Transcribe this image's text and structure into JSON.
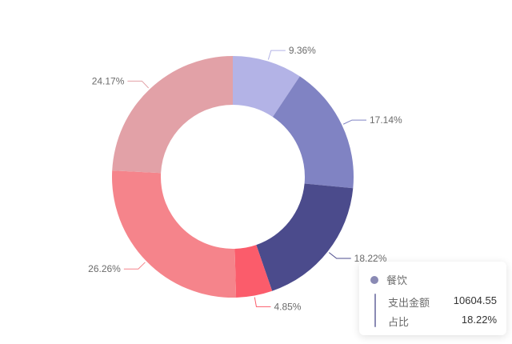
{
  "chart_data": {
    "type": "pie",
    "variant": "donut",
    "slices": [
      {
        "value": 9.36,
        "label": "9.36%",
        "color": "#b3b3e6"
      },
      {
        "value": 17.14,
        "label": "17.14%",
        "color": "#8083c3"
      },
      {
        "value": 18.22,
        "label": "18.22%",
        "color": "#4b4b8c"
      },
      {
        "value": 4.85,
        "label": "4.85%",
        "color": "#fb5c6b"
      },
      {
        "value": 26.26,
        "label": "26.26%",
        "color": "#f5848b"
      },
      {
        "value": 24.17,
        "label": "24.17%",
        "color": "#e2a1a7"
      }
    ]
  },
  "tooltip": {
    "title": "餐饮",
    "dot_color": "#8a8ab4",
    "bar_color": "#8a8ab4",
    "rows": [
      {
        "label": "支出金额",
        "value": "10604.55"
      },
      {
        "label": "占比",
        "value": "18.22%"
      }
    ]
  }
}
